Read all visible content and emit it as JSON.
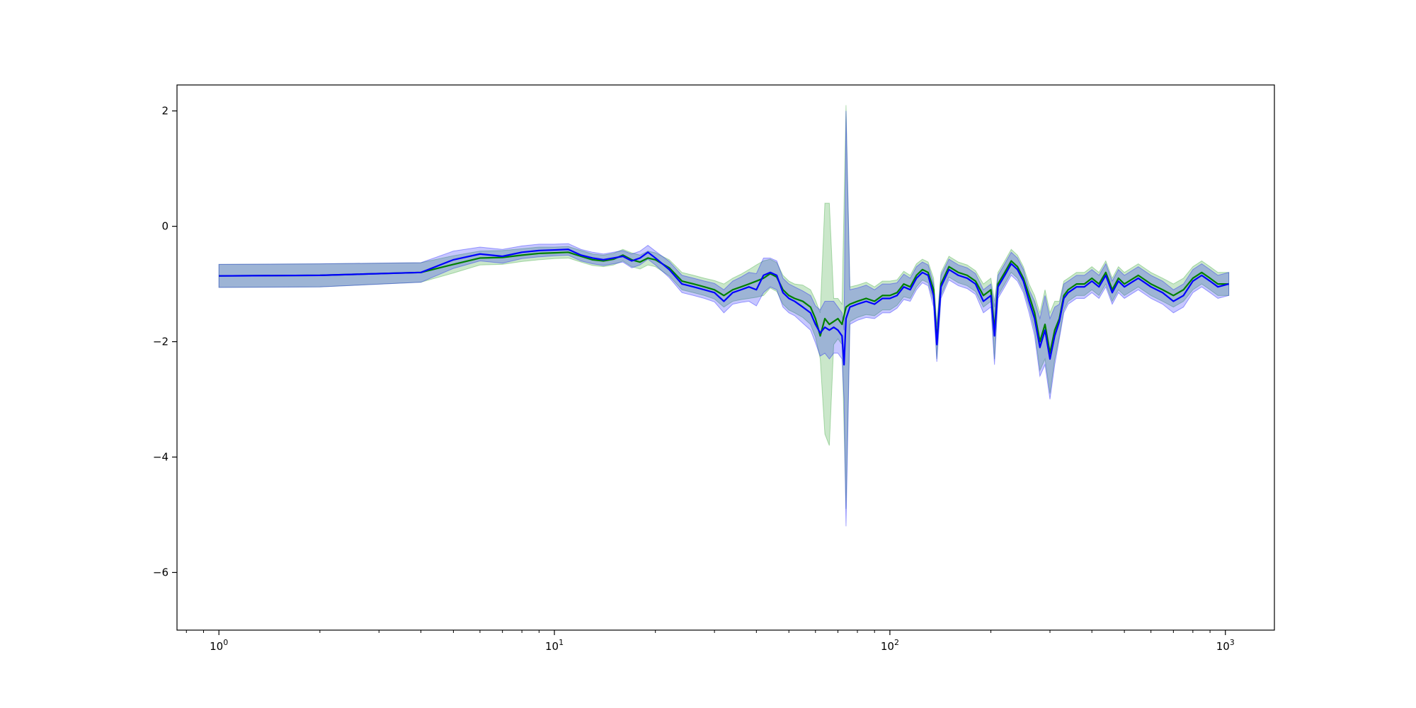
{
  "chart_data": {
    "type": "line",
    "xscale": "log",
    "xlim": [
      0.75,
      1400
    ],
    "ylim": [
      -7.0,
      2.45
    ],
    "grid": false,
    "legend": "none",
    "xticks": [
      {
        "value": 1,
        "base": "10",
        "exp": "0"
      },
      {
        "value": 10,
        "base": "10",
        "exp": "1"
      },
      {
        "value": 100,
        "base": "10",
        "exp": "2"
      },
      {
        "value": 1000,
        "base": "10",
        "exp": "3"
      }
    ],
    "yticks": [
      {
        "value": 2,
        "label": "2"
      },
      {
        "value": 0,
        "label": "0"
      },
      {
        "value": -2,
        "label": "−2"
      },
      {
        "value": -4,
        "label": "−4"
      },
      {
        "value": -6,
        "label": "−6"
      }
    ],
    "series": [
      {
        "color": "#008000",
        "band_color": "#2ca02c",
        "band_opacity": 0.25,
        "points": [
          [
            1,
            -0.86,
            0.2
          ],
          [
            2,
            -0.85,
            0.2
          ],
          [
            4,
            -0.8,
            0.17
          ],
          [
            5,
            -0.66,
            0.15
          ],
          [
            6,
            -0.55,
            0.12
          ],
          [
            7,
            -0.54,
            0.12
          ],
          [
            8,
            -0.5,
            0.11
          ],
          [
            9,
            -0.47,
            0.11
          ],
          [
            10,
            -0.46,
            0.1
          ],
          [
            11,
            -0.45,
            0.1
          ],
          [
            12,
            -0.52,
            0.1
          ],
          [
            13,
            -0.58,
            0.1
          ],
          [
            14,
            -0.6,
            0.1
          ],
          [
            15,
            -0.57,
            0.1
          ],
          [
            16,
            -0.5,
            0.1
          ],
          [
            17,
            -0.58,
            0.12
          ],
          [
            18,
            -0.62,
            0.12
          ],
          [
            19,
            -0.55,
            0.12
          ],
          [
            20,
            -0.58,
            0.12
          ],
          [
            22,
            -0.72,
            0.14
          ],
          [
            24,
            -0.95,
            0.15
          ],
          [
            26,
            -1.0,
            0.15
          ],
          [
            28,
            -1.05,
            0.15
          ],
          [
            30,
            -1.1,
            0.16
          ],
          [
            32,
            -1.2,
            0.2
          ],
          [
            34,
            -1.1,
            0.2
          ],
          [
            36,
            -1.05,
            0.22
          ],
          [
            38,
            -1.0,
            0.25
          ],
          [
            40,
            -0.95,
            0.28
          ],
          [
            42,
            -0.9,
            0.3
          ],
          [
            44,
            -0.82,
            0.25
          ],
          [
            46,
            -0.88,
            0.25
          ],
          [
            48,
            -1.1,
            0.25
          ],
          [
            50,
            -1.2,
            0.25
          ],
          [
            52,
            -1.25,
            0.25
          ],
          [
            55,
            -1.3,
            0.28
          ],
          [
            58,
            -1.4,
            0.3
          ],
          [
            60,
            -1.6,
            0.32
          ],
          [
            62,
            -1.9,
            0.4
          ],
          [
            64,
            -1.6,
            2.0
          ],
          [
            66,
            -1.7,
            2.1
          ],
          [
            68,
            -1.65,
            0.4
          ],
          [
            70,
            -1.6,
            0.35
          ],
          [
            72,
            -1.7,
            0.35
          ],
          [
            74,
            -1.4,
            3.5
          ],
          [
            76,
            -1.35,
            0.3
          ],
          [
            80,
            -1.3,
            0.28
          ],
          [
            85,
            -1.25,
            0.28
          ],
          [
            90,
            -1.3,
            0.25
          ],
          [
            95,
            -1.2,
            0.25
          ],
          [
            100,
            -1.2,
            0.25
          ],
          [
            105,
            -1.15,
            0.22
          ],
          [
            110,
            -1.0,
            0.22
          ],
          [
            115,
            -1.05,
            0.2
          ],
          [
            120,
            -0.85,
            0.2
          ],
          [
            125,
            -0.75,
            0.18
          ],
          [
            130,
            -0.8,
            0.18
          ],
          [
            135,
            -1.1,
            0.2
          ],
          [
            138,
            -2.0,
            0.3
          ],
          [
            142,
            -1.0,
            0.2
          ],
          [
            150,
            -0.7,
            0.18
          ],
          [
            160,
            -0.8,
            0.18
          ],
          [
            170,
            -0.85,
            0.18
          ],
          [
            180,
            -0.95,
            0.18
          ],
          [
            190,
            -1.2,
            0.2
          ],
          [
            200,
            -1.1,
            0.2
          ],
          [
            205,
            -1.8,
            0.5
          ],
          [
            210,
            -1.0,
            0.2
          ],
          [
            220,
            -0.8,
            0.2
          ],
          [
            230,
            -0.6,
            0.2
          ],
          [
            240,
            -0.7,
            0.2
          ],
          [
            250,
            -0.9,
            0.2
          ],
          [
            260,
            -1.2,
            0.2
          ],
          [
            270,
            -1.5,
            0.3
          ],
          [
            280,
            -2.0,
            0.5
          ],
          [
            290,
            -1.7,
            0.6
          ],
          [
            300,
            -2.2,
            0.7
          ],
          [
            310,
            -1.8,
            0.5
          ],
          [
            320,
            -1.6,
            0.3
          ],
          [
            330,
            -1.2,
            0.25
          ],
          [
            340,
            -1.1,
            0.2
          ],
          [
            360,
            -1.0,
            0.2
          ],
          [
            380,
            -1.0,
            0.2
          ],
          [
            400,
            -0.9,
            0.2
          ],
          [
            420,
            -1.0,
            0.2
          ],
          [
            440,
            -0.8,
            0.2
          ],
          [
            460,
            -1.1,
            0.2
          ],
          [
            480,
            -0.9,
            0.2
          ],
          [
            500,
            -1.0,
            0.2
          ],
          [
            550,
            -0.85,
            0.2
          ],
          [
            600,
            -1.0,
            0.2
          ],
          [
            650,
            -1.1,
            0.2
          ],
          [
            700,
            -1.2,
            0.2
          ],
          [
            750,
            -1.1,
            0.2
          ],
          [
            800,
            -0.9,
            0.2
          ],
          [
            850,
            -0.8,
            0.2
          ],
          [
            900,
            -0.9,
            0.2
          ],
          [
            950,
            -1.0,
            0.2
          ],
          [
            1024,
            -1.0,
            0.2
          ]
        ]
      },
      {
        "color": "#0000ff",
        "band_color": "#0000ff",
        "band_opacity": 0.22,
        "points": [
          [
            1,
            -0.86,
            0.2
          ],
          [
            2,
            -0.85,
            0.2
          ],
          [
            4,
            -0.8,
            0.17
          ],
          [
            5,
            -0.58,
            0.15
          ],
          [
            6,
            -0.48,
            0.12
          ],
          [
            7,
            -0.52,
            0.12
          ],
          [
            8,
            -0.45,
            0.11
          ],
          [
            9,
            -0.42,
            0.11
          ],
          [
            10,
            -0.41,
            0.1
          ],
          [
            11,
            -0.4,
            0.1
          ],
          [
            12,
            -0.5,
            0.1
          ],
          [
            13,
            -0.55,
            0.1
          ],
          [
            14,
            -0.58,
            0.1
          ],
          [
            15,
            -0.55,
            0.1
          ],
          [
            16,
            -0.52,
            0.1
          ],
          [
            17,
            -0.6,
            0.12
          ],
          [
            18,
            -0.55,
            0.12
          ],
          [
            19,
            -0.45,
            0.12
          ],
          [
            20,
            -0.55,
            0.12
          ],
          [
            22,
            -0.75,
            0.14
          ],
          [
            24,
            -1.0,
            0.15
          ],
          [
            26,
            -1.05,
            0.15
          ],
          [
            28,
            -1.1,
            0.15
          ],
          [
            30,
            -1.15,
            0.16
          ],
          [
            32,
            -1.3,
            0.2
          ],
          [
            34,
            -1.15,
            0.2
          ],
          [
            36,
            -1.1,
            0.22
          ],
          [
            38,
            -1.05,
            0.25
          ],
          [
            40,
            -1.1,
            0.28
          ],
          [
            42,
            -0.85,
            0.3
          ],
          [
            44,
            -0.8,
            0.25
          ],
          [
            46,
            -0.85,
            0.25
          ],
          [
            48,
            -1.15,
            0.25
          ],
          [
            50,
            -1.25,
            0.25
          ],
          [
            52,
            -1.3,
            0.25
          ],
          [
            55,
            -1.4,
            0.28
          ],
          [
            58,
            -1.5,
            0.3
          ],
          [
            60,
            -1.7,
            0.32
          ],
          [
            62,
            -1.85,
            0.4
          ],
          [
            64,
            -1.75,
            0.45
          ],
          [
            66,
            -1.8,
            0.5
          ],
          [
            68,
            -1.75,
            0.45
          ],
          [
            70,
            -1.8,
            0.4
          ],
          [
            72,
            -1.9,
            0.4
          ],
          [
            73,
            -2.4,
            0.6
          ],
          [
            74,
            -1.6,
            3.6
          ],
          [
            76,
            -1.4,
            0.3
          ],
          [
            80,
            -1.35,
            0.28
          ],
          [
            85,
            -1.3,
            0.28
          ],
          [
            90,
            -1.35,
            0.25
          ],
          [
            95,
            -1.25,
            0.25
          ],
          [
            100,
            -1.25,
            0.25
          ],
          [
            105,
            -1.2,
            0.22
          ],
          [
            110,
            -1.05,
            0.22
          ],
          [
            115,
            -1.1,
            0.2
          ],
          [
            120,
            -0.9,
            0.2
          ],
          [
            125,
            -0.8,
            0.18
          ],
          [
            130,
            -0.85,
            0.18
          ],
          [
            135,
            -1.2,
            0.2
          ],
          [
            138,
            -2.05,
            0.3
          ],
          [
            142,
            -1.05,
            0.2
          ],
          [
            150,
            -0.75,
            0.18
          ],
          [
            160,
            -0.85,
            0.18
          ],
          [
            170,
            -0.9,
            0.18
          ],
          [
            180,
            -1.0,
            0.18
          ],
          [
            190,
            -1.3,
            0.2
          ],
          [
            200,
            -1.2,
            0.2
          ],
          [
            205,
            -1.9,
            0.5
          ],
          [
            210,
            -1.05,
            0.2
          ],
          [
            220,
            -0.85,
            0.2
          ],
          [
            230,
            -0.65,
            0.2
          ],
          [
            240,
            -0.75,
            0.2
          ],
          [
            250,
            -0.95,
            0.2
          ],
          [
            260,
            -1.3,
            0.2
          ],
          [
            270,
            -1.6,
            0.3
          ],
          [
            280,
            -2.1,
            0.5
          ],
          [
            290,
            -1.8,
            0.6
          ],
          [
            300,
            -2.3,
            0.7
          ],
          [
            310,
            -1.9,
            0.5
          ],
          [
            320,
            -1.65,
            0.3
          ],
          [
            330,
            -1.25,
            0.25
          ],
          [
            340,
            -1.15,
            0.2
          ],
          [
            360,
            -1.05,
            0.2
          ],
          [
            380,
            -1.05,
            0.2
          ],
          [
            400,
            -0.95,
            0.2
          ],
          [
            420,
            -1.05,
            0.2
          ],
          [
            440,
            -0.85,
            0.2
          ],
          [
            460,
            -1.15,
            0.2
          ],
          [
            480,
            -0.95,
            0.2
          ],
          [
            500,
            -1.05,
            0.2
          ],
          [
            550,
            -0.9,
            0.2
          ],
          [
            600,
            -1.05,
            0.2
          ],
          [
            650,
            -1.15,
            0.2
          ],
          [
            700,
            -1.3,
            0.2
          ],
          [
            750,
            -1.2,
            0.2
          ],
          [
            800,
            -0.95,
            0.2
          ],
          [
            850,
            -0.85,
            0.2
          ],
          [
            900,
            -0.95,
            0.2
          ],
          [
            950,
            -1.05,
            0.2
          ],
          [
            1024,
            -1.0,
            0.2
          ]
        ]
      }
    ]
  }
}
